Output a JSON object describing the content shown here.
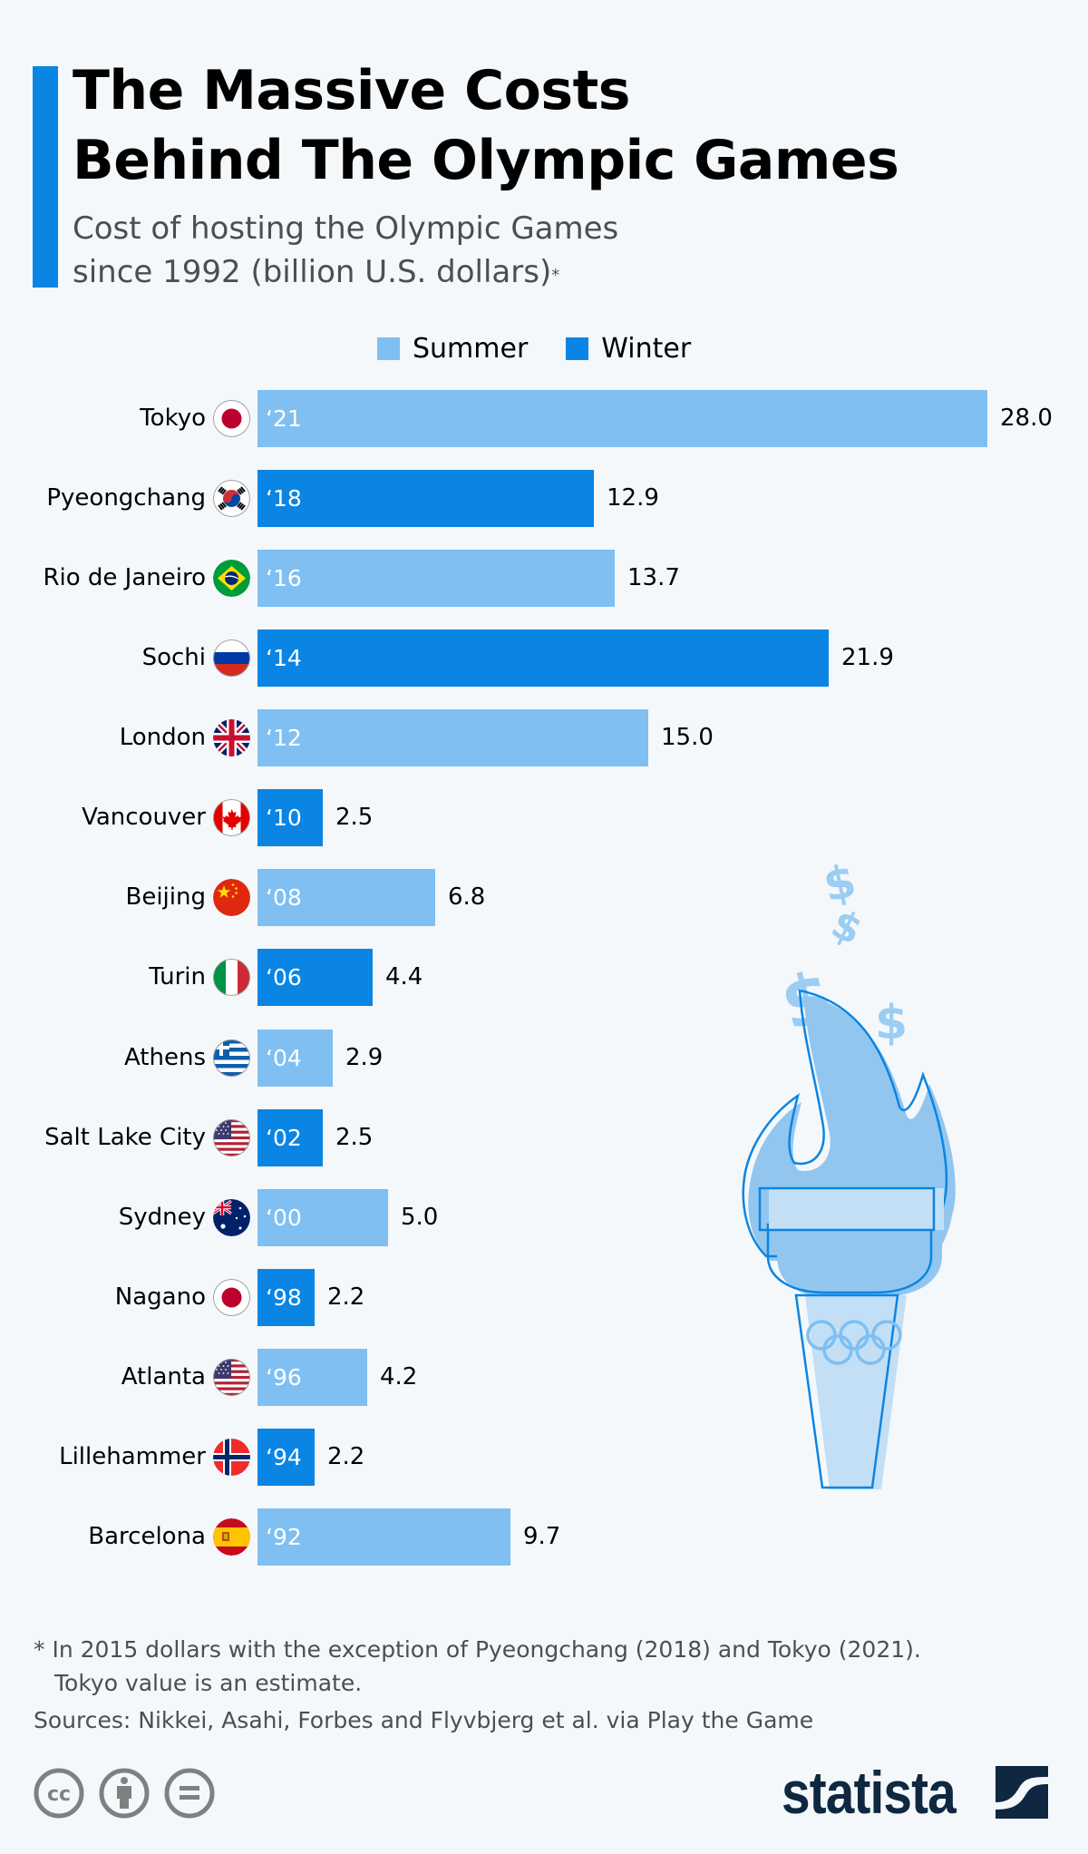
{
  "header": {
    "title_line1": "The Massive Costs",
    "title_line2": "Behind The Olympic Games",
    "subtitle_line1": "Cost of hosting the Olympic Games",
    "subtitle_line2": "since 1992 (billion U.S. dollars)",
    "subtitle_marker": "*"
  },
  "colors": {
    "summer": "#7fbff1",
    "winter": "#0a85e3",
    "accent": "#0a85e3",
    "background": "#f4f8fb",
    "brand": "#0f2740"
  },
  "legend": {
    "summer_label": "Summer",
    "winter_label": "Winter"
  },
  "rows": [
    {
      "city": "Tokyo",
      "year": "‘21",
      "value": "28.0",
      "season": "summer",
      "flag": "japan"
    },
    {
      "city": "Pyeongchang",
      "year": "‘18",
      "value": "12.9",
      "season": "winter",
      "flag": "south-korea"
    },
    {
      "city": "Rio de Janeiro",
      "year": "‘16",
      "value": "13.7",
      "season": "summer",
      "flag": "brazil"
    },
    {
      "city": "Sochi",
      "year": "‘14",
      "value": "21.9",
      "season": "winter",
      "flag": "russia"
    },
    {
      "city": "London",
      "year": "‘12",
      "value": "15.0",
      "season": "summer",
      "flag": "uk"
    },
    {
      "city": "Vancouver",
      "year": "‘10",
      "value": "2.5",
      "season": "winter",
      "flag": "canada"
    },
    {
      "city": "Beijing",
      "year": "‘08",
      "value": "6.8",
      "season": "summer",
      "flag": "china"
    },
    {
      "city": "Turin",
      "year": "‘06",
      "value": "4.4",
      "season": "winter",
      "flag": "italy"
    },
    {
      "city": "Athens",
      "year": "‘04",
      "value": "2.9",
      "season": "summer",
      "flag": "greece"
    },
    {
      "city": "Salt Lake City",
      "year": "‘02",
      "value": "2.5",
      "season": "winter",
      "flag": "usa"
    },
    {
      "city": "Sydney",
      "year": "‘00",
      "value": "5.0",
      "season": "summer",
      "flag": "australia"
    },
    {
      "city": "Nagano",
      "year": "‘98",
      "value": "2.2",
      "season": "winter",
      "flag": "japan"
    },
    {
      "city": "Atlanta",
      "year": "‘96",
      "value": "4.2",
      "season": "summer",
      "flag": "usa"
    },
    {
      "city": "Lillehammer",
      "year": "‘94",
      "value": "2.2",
      "season": "winter",
      "flag": "norway"
    },
    {
      "city": "Barcelona",
      "year": "‘92",
      "value": "9.7",
      "season": "summer",
      "flag": "spain"
    }
  ],
  "chart_data": {
    "type": "bar",
    "orientation": "horizontal",
    "title": "The Massive Costs Behind The Olympic Games",
    "subtitle": "Cost of hosting the Olympic Games since 1992 (billion U.S. dollars)*",
    "xlabel": "",
    "ylabel": "",
    "unit": "billion U.S. dollars",
    "categories": [
      "Tokyo '21",
      "Pyeongchang '18",
      "Rio de Janeiro '16",
      "Sochi '14",
      "London '12",
      "Vancouver '10",
      "Beijing '08",
      "Turin '06",
      "Athens '04",
      "Salt Lake City '02",
      "Sydney '00",
      "Nagano '98",
      "Atlanta '96",
      "Lillehammer '94",
      "Barcelona '92"
    ],
    "values": [
      28.0,
      12.9,
      13.7,
      21.9,
      15.0,
      2.5,
      6.8,
      4.4,
      2.9,
      2.5,
      5.0,
      2.2,
      4.2,
      2.2,
      9.7
    ],
    "series": [
      {
        "name": "Summer",
        "color": "#7fbff1",
        "categories": [
          "Tokyo '21",
          "Rio de Janeiro '16",
          "London '12",
          "Beijing '08",
          "Athens '04",
          "Sydney '00",
          "Atlanta '96",
          "Barcelona '92"
        ],
        "values": [
          28.0,
          13.7,
          15.0,
          6.8,
          2.9,
          5.0,
          4.2,
          9.7
        ]
      },
      {
        "name": "Winter",
        "color": "#0a85e3",
        "categories": [
          "Pyeongchang '18",
          "Sochi '14",
          "Vancouver '10",
          "Turin '06",
          "Salt Lake City '02",
          "Nagano '98",
          "Lillehammer '94"
        ],
        "values": [
          12.9,
          21.9,
          2.5,
          4.4,
          2.5,
          2.2,
          2.2
        ]
      }
    ],
    "legend": [
      "Summer",
      "Winter"
    ],
    "legend_position": "top",
    "grid": false,
    "xlim": [
      0,
      28.0
    ],
    "data_labels": true
  },
  "footer": {
    "note_line1": "* In 2015 dollars with the exception of Pyeongchang (2018) and Tokyo (2021).",
    "note_line2": "Tokyo value is an estimate.",
    "sources": "Sources: Nikkei, Asahi, Forbes and Flyvbjerg et al. via Play the Game",
    "brand": "statista",
    "license_icons": [
      "cc-icon",
      "attribution-icon",
      "no-derivatives-icon"
    ]
  }
}
